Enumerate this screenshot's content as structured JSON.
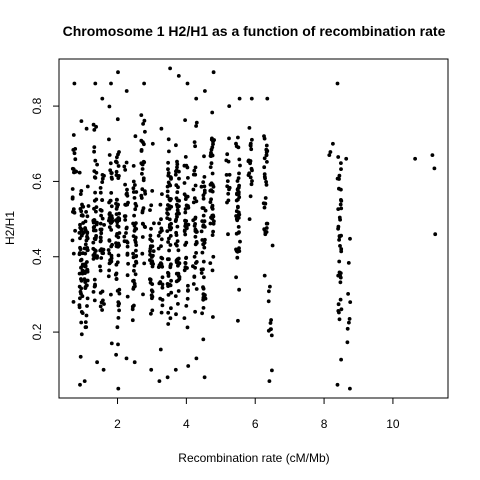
{
  "chart_data": {
    "type": "scatter",
    "title": "Chromosome 1 H2/H1 as a function of recombination rate",
    "xlabel": "Recombination rate (cM/Mb)",
    "ylabel": "H2/H1",
    "xlim": [
      0.3,
      11.6
    ],
    "ylim": [
      0.025,
      0.925
    ],
    "xticks": [
      2,
      4,
      6,
      8,
      10
    ],
    "yticks": [
      0.2,
      0.4,
      0.6,
      0.8
    ],
    "point_color": "#000000",
    "grid": false,
    "legend": "none",
    "point_columns": [
      {
        "x": 0.75,
        "ymin": 0.28,
        "ymax": 0.86,
        "n": 22,
        "seed": 11
      },
      {
        "x": 0.95,
        "ymin": 0.06,
        "ymax": 0.76,
        "n": 55,
        "seed": 12
      },
      {
        "x": 1.1,
        "ymin": 0.07,
        "ymax": 0.74,
        "n": 45,
        "seed": 13
      },
      {
        "x": 1.35,
        "ymin": 0.12,
        "ymax": 0.86,
        "n": 50,
        "seed": 14
      },
      {
        "x": 1.55,
        "ymin": 0.1,
        "ymax": 0.82,
        "n": 40,
        "seed": 15
      },
      {
        "x": 1.8,
        "ymin": 0.17,
        "ymax": 0.86,
        "n": 45,
        "seed": 16
      },
      {
        "x": 2.0,
        "ymin": 0.05,
        "ymax": 0.89,
        "n": 60,
        "seed": 17
      },
      {
        "x": 2.25,
        "ymin": 0.13,
        "ymax": 0.84,
        "n": 30,
        "seed": 18
      },
      {
        "x": 2.5,
        "ymin": 0.12,
        "ymax": 0.72,
        "n": 45,
        "seed": 19
      },
      {
        "x": 2.75,
        "ymin": 0.3,
        "ymax": 0.86,
        "n": 35,
        "seed": 20
      },
      {
        "x": 3.0,
        "ymin": 0.1,
        "ymax": 0.7,
        "n": 35,
        "seed": 21
      },
      {
        "x": 3.25,
        "ymin": 0.07,
        "ymax": 0.74,
        "n": 30,
        "seed": 22
      },
      {
        "x": 3.5,
        "ymin": 0.08,
        "ymax": 0.9,
        "n": 60,
        "seed": 23
      },
      {
        "x": 3.75,
        "ymin": 0.1,
        "ymax": 0.88,
        "n": 55,
        "seed": 24
      },
      {
        "x": 4.0,
        "ymin": 0.11,
        "ymax": 0.86,
        "n": 45,
        "seed": 25
      },
      {
        "x": 4.25,
        "ymin": 0.13,
        "ymax": 0.82,
        "n": 40,
        "seed": 26
      },
      {
        "x": 4.5,
        "ymin": 0.08,
        "ymax": 0.84,
        "n": 45,
        "seed": 27
      },
      {
        "x": 4.75,
        "ymin": 0.24,
        "ymax": 0.89,
        "n": 45,
        "seed": 28
      },
      {
        "x": 5.2,
        "ymin": 0.46,
        "ymax": 0.8,
        "n": 15,
        "seed": 29
      },
      {
        "x": 5.5,
        "ymin": 0.23,
        "ymax": 0.82,
        "n": 45,
        "seed": 30
      },
      {
        "x": 5.85,
        "ymin": 0.5,
        "ymax": 0.82,
        "n": 20,
        "seed": 31
      },
      {
        "x": 6.3,
        "ymin": 0.35,
        "ymax": 0.82,
        "n": 30,
        "seed": 32
      },
      {
        "x": 6.45,
        "ymin": 0.07,
        "ymax": 0.43,
        "n": 12,
        "seed": 33
      },
      {
        "x": 8.2,
        "ymin": 0.67,
        "ymax": 0.7,
        "n": 3,
        "seed": 34
      },
      {
        "x": 8.45,
        "ymin": 0.06,
        "ymax": 0.86,
        "n": 40,
        "seed": 35
      },
      {
        "x": 8.7,
        "ymin": 0.05,
        "ymax": 0.66,
        "n": 10,
        "seed": 36
      },
      {
        "x": 10.7,
        "ymin": 0.66,
        "ymax": 0.67,
        "n": 1,
        "seed": 37
      },
      {
        "x": 11.2,
        "ymin": 0.46,
        "ymax": 0.67,
        "n": 3,
        "seed": 38
      }
    ]
  }
}
